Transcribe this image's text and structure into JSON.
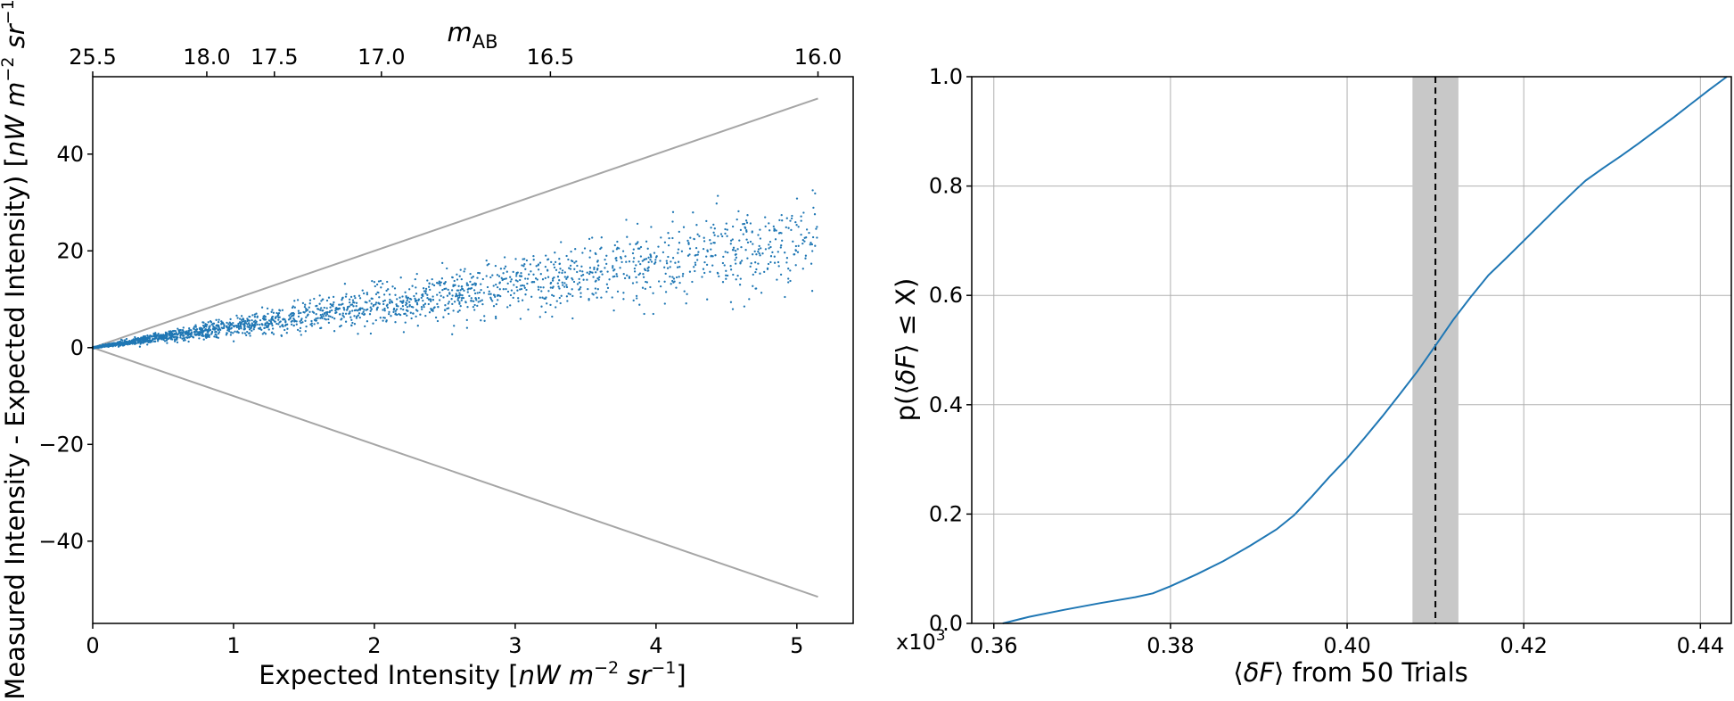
{
  "chart_data": [
    {
      "type": "scatter",
      "xlabel": "Expected Intensity [nW m⁻² sr⁻¹]",
      "ylabel": "(Measured Intensity - Expected Intensity) [nW m⁻² sr⁻¹]",
      "top_axis_label": "mAB",
      "xlim": [
        0,
        5.4
      ],
      "ylim": [
        -57,
        56
      ],
      "xticks": [
        "0",
        "1",
        "2",
        "3",
        "4",
        "5"
      ],
      "yticks": [
        "−40",
        "−20",
        "0",
        "20",
        "40"
      ],
      "top_ticks": [
        {
          "label": "25.5",
          "x": 0.0
        },
        {
          "label": "18.0",
          "x": 0.81
        },
        {
          "label": "17.5",
          "x": 1.29
        },
        {
          "label": "17.0",
          "x": 2.05
        },
        {
          "label": "16.5",
          "x": 3.25
        },
        {
          "label": "16.0",
          "x": 5.15
        }
      ],
      "envelope_lines": [
        {
          "x": [
            0,
            5.15
          ],
          "y": [
            0,
            51.5
          ]
        },
        {
          "x": [
            0,
            5.15
          ],
          "y": [
            0,
            -51.5
          ]
        }
      ],
      "scatter_trend": {
        "x_max": 5.15,
        "slope_center": 4.3,
        "approx_points": 2500
      },
      "marker_color": "#1f77b4",
      "envelope_color": "#a6a6a6",
      "grid": false
    },
    {
      "type": "line",
      "xlabel": "⟨δF⟩ from 50 Trials",
      "ylabel": "p(⟨δF⟩ ≤ X)",
      "x_multiplier": "x10³",
      "xlim": [
        0.3575,
        0.4435
      ],
      "ylim": [
        0.0,
        1.0
      ],
      "xticks": [
        "0.36",
        "0.38",
        "0.40",
        "0.42",
        "0.44"
      ],
      "yticks": [
        "0.0",
        "0.2",
        "0.4",
        "0.6",
        "0.8",
        "1.0"
      ],
      "series": [
        {
          "x": [
            0.361,
            0.364,
            0.368,
            0.372,
            0.376,
            0.378,
            0.38,
            0.383,
            0.386,
            0.389,
            0.392,
            0.394,
            0.396,
            0.398,
            0.4,
            0.402,
            0.404,
            0.406,
            0.408,
            0.41,
            0.412,
            0.414,
            0.416,
            0.418,
            0.42,
            0.422,
            0.424,
            0.426,
            0.427,
            0.429,
            0.431,
            0.433,
            0.435,
            0.437,
            0.439,
            0.441,
            0.443
          ],
          "y": [
            0.0,
            0.012,
            0.025,
            0.037,
            0.048,
            0.055,
            0.068,
            0.09,
            0.114,
            0.142,
            0.172,
            0.198,
            0.232,
            0.268,
            0.302,
            0.34,
            0.379,
            0.42,
            0.462,
            0.508,
            0.555,
            0.597,
            0.637,
            0.668,
            0.7,
            0.732,
            0.764,
            0.795,
            0.81,
            0.833,
            0.855,
            0.878,
            0.902,
            0.926,
            0.951,
            0.976,
            1.0
          ],
          "color": "#1f77b4"
        }
      ],
      "vline": {
        "x": 0.41,
        "style": "dashed",
        "color": "#000000"
      },
      "band": {
        "x0": 0.4074,
        "x1": 0.4126,
        "color": "#c8c8c8"
      },
      "grid": true
    }
  ]
}
